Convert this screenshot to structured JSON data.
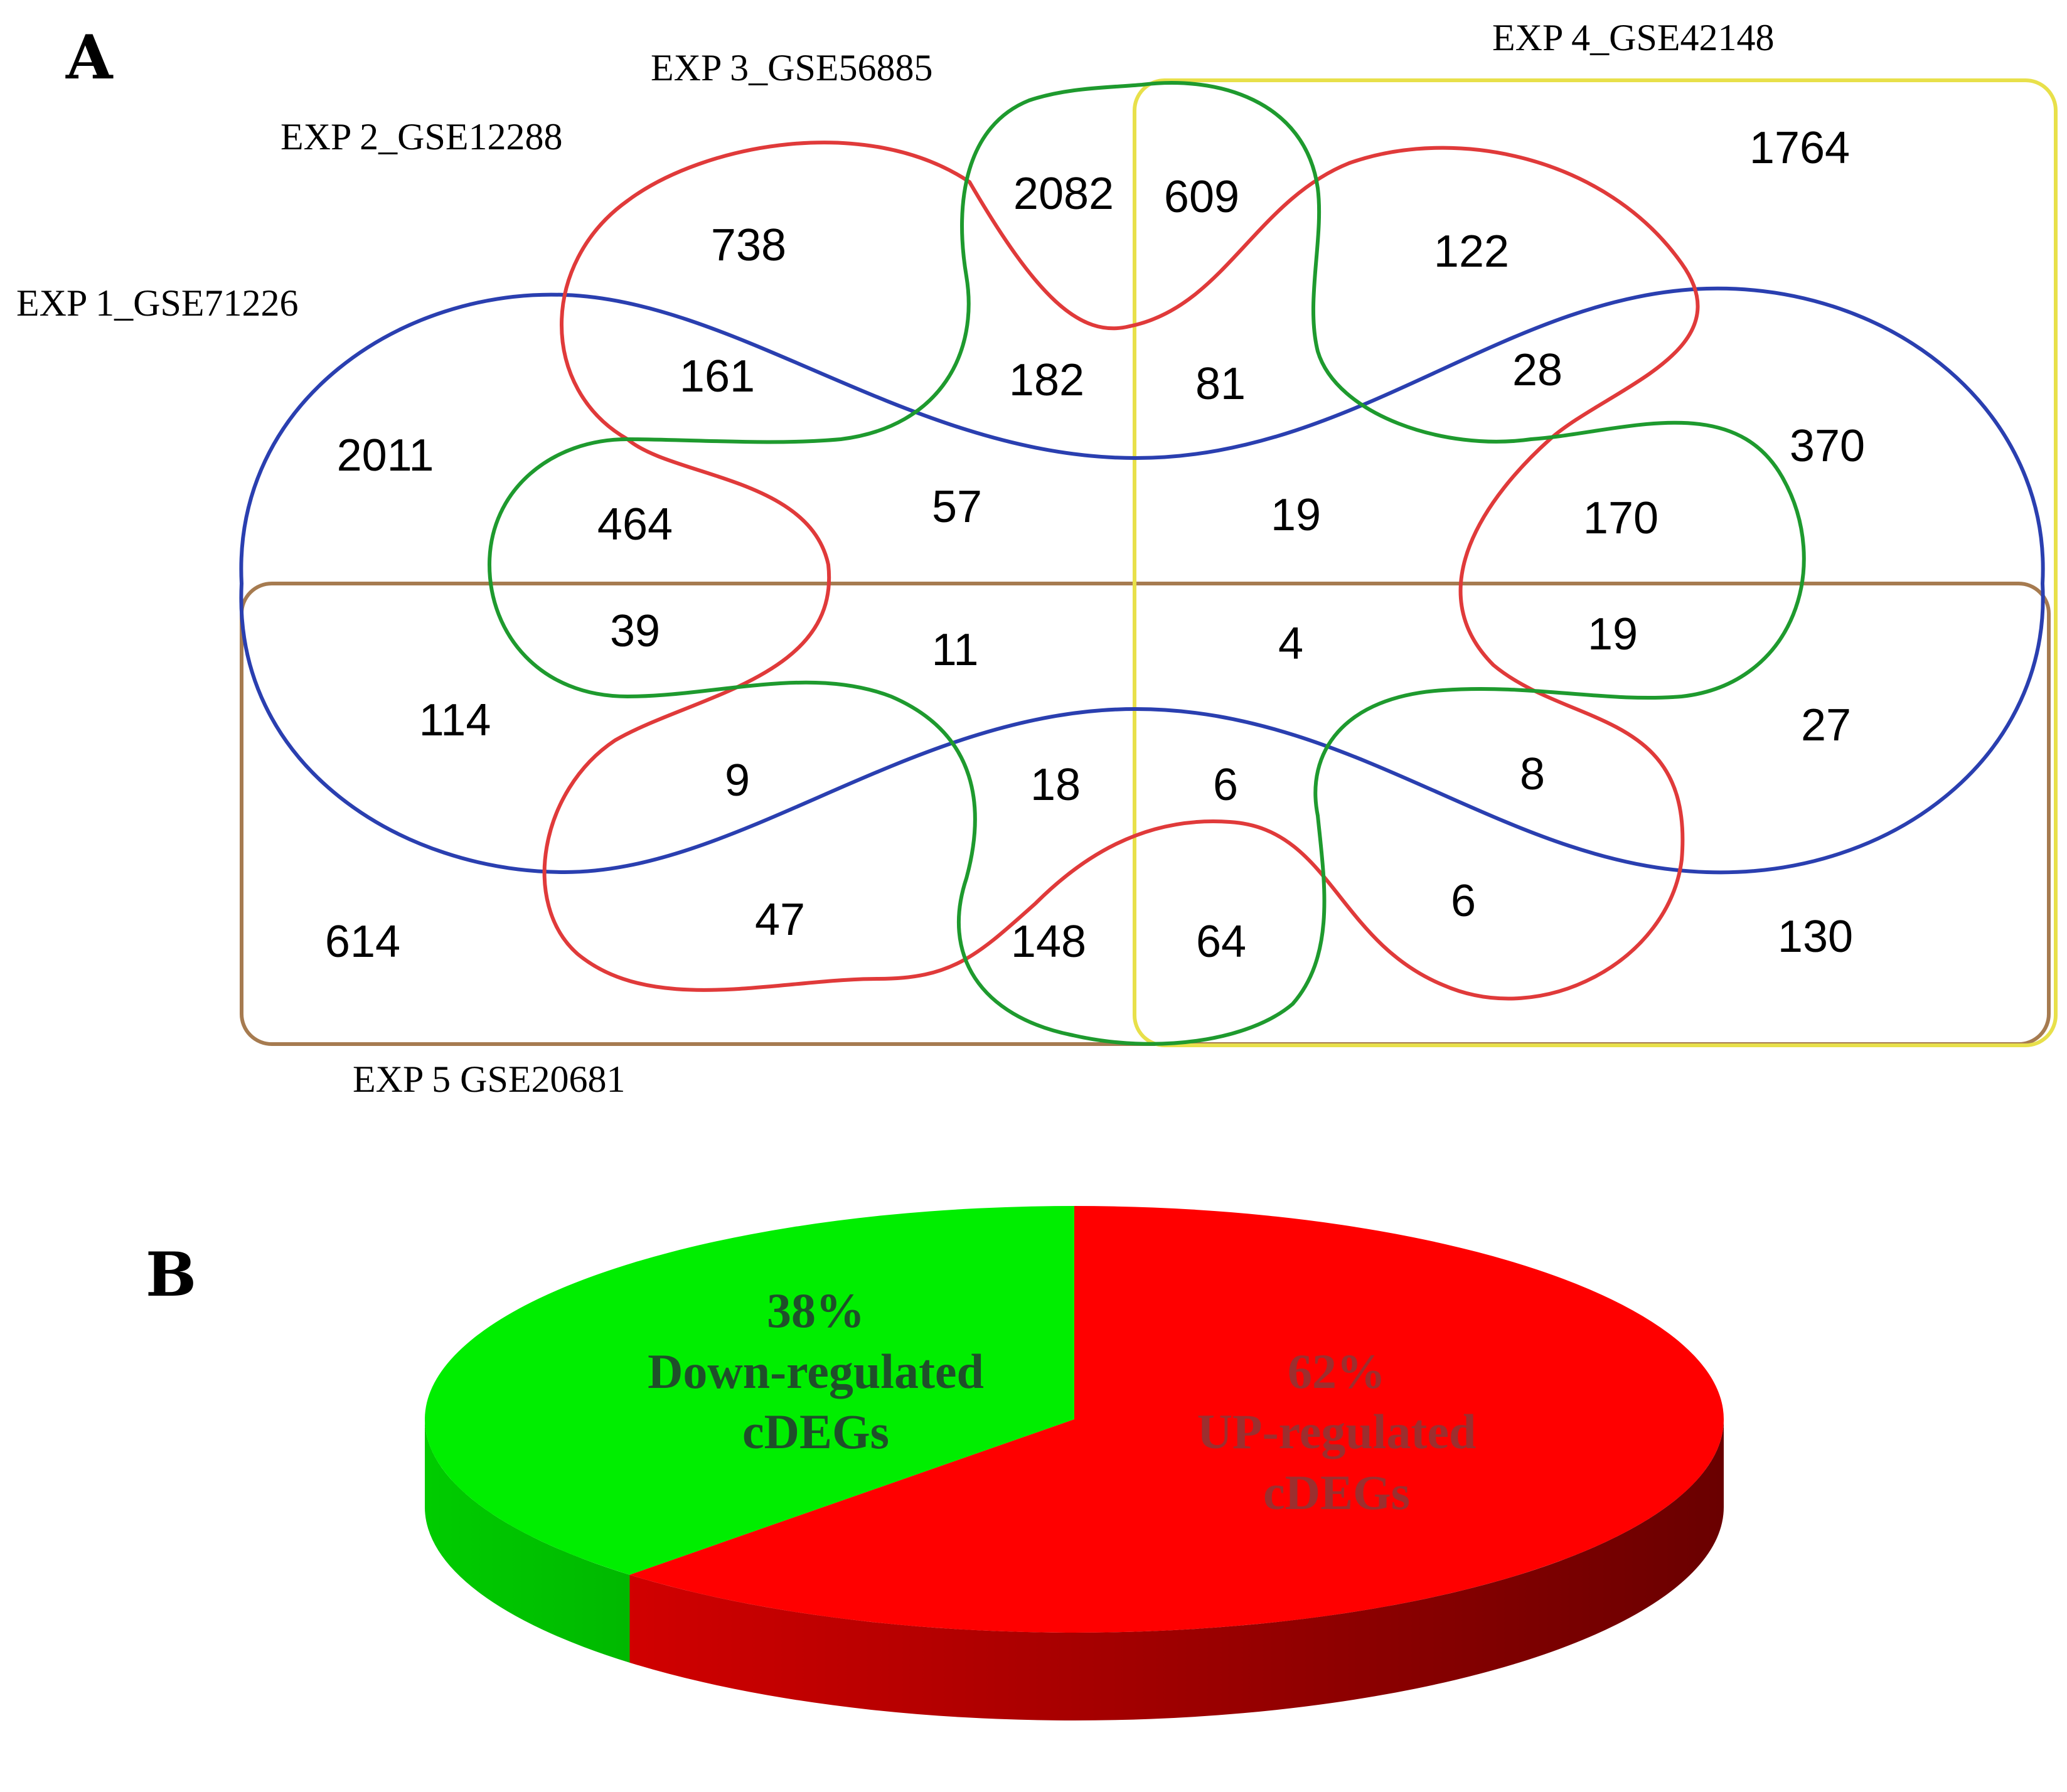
{
  "panels": {
    "a": "A",
    "b": "B"
  },
  "venn": {
    "sets": [
      {
        "name": "EXP 1_GSE71226",
        "color": "#2a3fb0"
      },
      {
        "name": "EXP 2_GSE12288",
        "color": "#e03a3a"
      },
      {
        "name": "EXP 3_GSE56885",
        "color": "#1e9a2e"
      },
      {
        "name": "EXP 4_GSE42148",
        "color": "#e8e04a"
      },
      {
        "name": "EXP 5 GSE20681",
        "color": "#a67b50"
      }
    ],
    "counts": [
      "1764",
      "2082",
      "609",
      "738",
      "122",
      "2011",
      "161",
      "182",
      "81",
      "28",
      "370",
      "464",
      "57",
      "19",
      "170",
      "39",
      "11",
      "4",
      "19",
      "114",
      "27",
      "9",
      "18",
      "6",
      "8",
      "614",
      "47",
      "148",
      "64",
      "6",
      "130"
    ]
  },
  "chart_data": {
    "type": "pie",
    "title": "",
    "slices": [
      {
        "percent_label": "38%",
        "value": 38,
        "line1": "Down-regulated",
        "line2": "cDEGs",
        "color": "#00ee00",
        "text_color": "#1f4f2a"
      },
      {
        "percent_label": "62%",
        "value": 62,
        "line1": "UP-regulated",
        "line2": "cDEGs",
        "color": "#ff0000",
        "text_color": "#9c2f2f"
      }
    ]
  }
}
